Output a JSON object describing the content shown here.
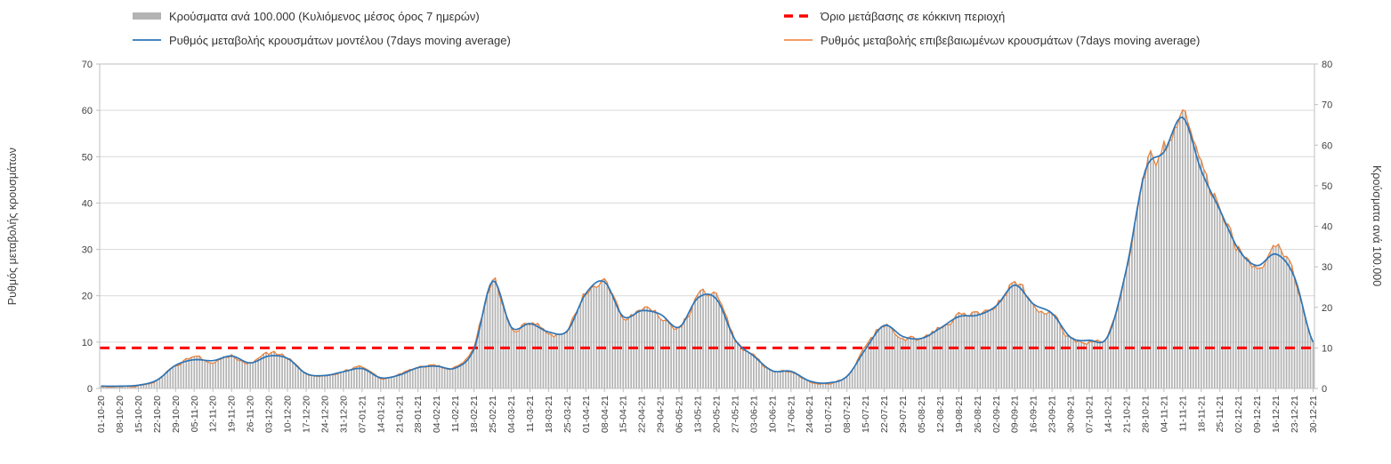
{
  "legend": {
    "items": [
      {
        "id": "bars",
        "label": "Κρούσματα ανά 100.000 (Κυλιόμενος μέσος όρος 7 ημερών)",
        "color": "#b3b3b3",
        "type": "bar"
      },
      {
        "id": "threshold",
        "label": "Όριο μετάβασης σε κόκκινη περιοχή",
        "color": "#ff0000",
        "type": "dashed-line"
      },
      {
        "id": "model",
        "label": "Ρυθμός μεταβολής κρουσμάτων μοντέλου (7days moving average)",
        "color": "#2e75b6",
        "type": "line"
      },
      {
        "id": "confirmed",
        "label": "Ρυθμός μεταβολής επιβεβαιωμένων κρουσμάτων (7days moving average)",
        "color": "#ed7d31",
        "type": "line"
      }
    ]
  },
  "chart_data": {
    "type": "bar+line combo, dual y-axes, daily data with weekly x tick labels",
    "left_axis": {
      "title": "Ρυθμός μεταβολής κρουσμάτων",
      "min": 0,
      "max": 70,
      "ticks": [
        0,
        10,
        20,
        30,
        40,
        50,
        60,
        70
      ]
    },
    "right_axis": {
      "title": "Κρούσματα ανά 100.000",
      "min": 0,
      "max": 80,
      "ticks": [
        0,
        10,
        20,
        30,
        40,
        50,
        60,
        70,
        80
      ]
    },
    "grid": "horizontal gridlines at left-axis ticks",
    "legend_position": "top",
    "threshold": {
      "label": "Όριο μετάβασης σε κόκκινη περιοχή",
      "value_right_axis": 10,
      "equivalent_left_axis_value": 8.75,
      "style": "red dashed horizontal line"
    },
    "points_per_interval": 7,
    "x_tick_labels": [
      "01-10-20",
      "08-10-20",
      "15-10-20",
      "22-10-20",
      "29-10-20",
      "05-11-20",
      "12-11-20",
      "19-11-20",
      "26-11-20",
      "03-12-20",
      "10-12-20",
      "17-12-20",
      "24-12-20",
      "31-12-20",
      "07-01-21",
      "14-01-21",
      "21-01-21",
      "28-01-21",
      "04-02-21",
      "11-02-21",
      "18-02-21",
      "25-02-21",
      "04-03-21",
      "11-03-21",
      "18-03-21",
      "25-03-21",
      "01-04-21",
      "08-04-21",
      "15-04-21",
      "22-04-21",
      "29-04-21",
      "06-05-21",
      "13-05-21",
      "20-05-21",
      "27-05-21",
      "03-06-21",
      "10-06-21",
      "17-06-21",
      "24-06-21",
      "01-07-21",
      "08-07-21",
      "15-07-21",
      "22-07-21",
      "29-07-21",
      "05-08-21",
      "12-08-21",
      "19-08-21",
      "26-08-21",
      "02-09-21",
      "09-09-21",
      "16-09-21",
      "23-09-21",
      "30-09-21",
      "07-10-21",
      "14-10-21",
      "21-10-21",
      "28-10-21",
      "04-11-21",
      "11-11-21",
      "18-11-21",
      "25-11-21",
      "02-12-21",
      "09-12-21",
      "16-12-21",
      "23-12-21",
      "30-12-21"
    ],
    "series": [
      {
        "id": "model",
        "name": "Ρυθμός μεταβολής κρουσμάτων μοντέλου (7days moving average)",
        "axis": "left",
        "style": "smooth blue line",
        "weekly_values": [
          0.5,
          0.5,
          0.7,
          1.8,
          5.0,
          6.2,
          6.0,
          7.0,
          5.5,
          7.0,
          6.5,
          3.2,
          2.8,
          3.6,
          4.3,
          2.3,
          2.9,
          4.5,
          4.8,
          4.4,
          8.5,
          23.2,
          13.2,
          14.0,
          12.2,
          12.4,
          20.5,
          23.0,
          15.5,
          16.8,
          16.0,
          13.2,
          19.5,
          19.3,
          10.5,
          7.0,
          3.8,
          3.7,
          1.6,
          1.2,
          2.6,
          8.5,
          13.6,
          11.2,
          10.8,
          13.0,
          15.5,
          15.8,
          17.8,
          22.3,
          18.2,
          16.2,
          11.0,
          10.4,
          11.3,
          26.0,
          47.0,
          51.0,
          58.5,
          47.0,
          38.5,
          30.0,
          26.5,
          29.0,
          24.0,
          10.0
        ]
      },
      {
        "id": "confirmed",
        "name": "Ρυθμός μεταβολής επιβεβαιωμένων κρουσμάτων (7days moving average)",
        "axis": "left",
        "style": "jagged orange line",
        "weekly_values": [
          0.4,
          0.4,
          0.6,
          1.8,
          5.2,
          6.4,
          5.9,
          7.1,
          5.4,
          7.4,
          6.6,
          3.1,
          2.7,
          3.7,
          4.4,
          2.2,
          2.9,
          4.6,
          4.9,
          4.3,
          8.8,
          23.5,
          13.0,
          14.2,
          12.0,
          12.5,
          20.8,
          23.1,
          15.3,
          17.0,
          15.9,
          13.0,
          19.7,
          19.5,
          10.3,
          6.9,
          3.7,
          3.7,
          1.5,
          1.1,
          2.6,
          8.7,
          13.8,
          11.0,
          10.7,
          13.1,
          15.6,
          15.9,
          17.9,
          22.4,
          18.0,
          16.4,
          10.8,
          10.2,
          11.4,
          26.5,
          47.5,
          51.5,
          61.0,
          47.0,
          39.0,
          30.0,
          26.0,
          29.5,
          24.0,
          9.5
        ]
      },
      {
        "id": "cases_per_100k_bars",
        "name": "Κρούσματα ανά 100.000 (Κυλιόμενος μέσος όρος 7 ημερών)",
        "axis": "right",
        "style": "thin gray daily bars",
        "note": "Bar tops visually coincide with the confirmed-rate line: right-axis value ≈ left-axis value × 80/70 (peak ≈ 73 per 100.000 in mid-Nov 2021)"
      }
    ],
    "notes": "Daily values between the weekly anchors above are smooth-interpolated estimates read from the plot; the orange/bars series shows day-to-day jitter around the smooth blue model curve."
  }
}
